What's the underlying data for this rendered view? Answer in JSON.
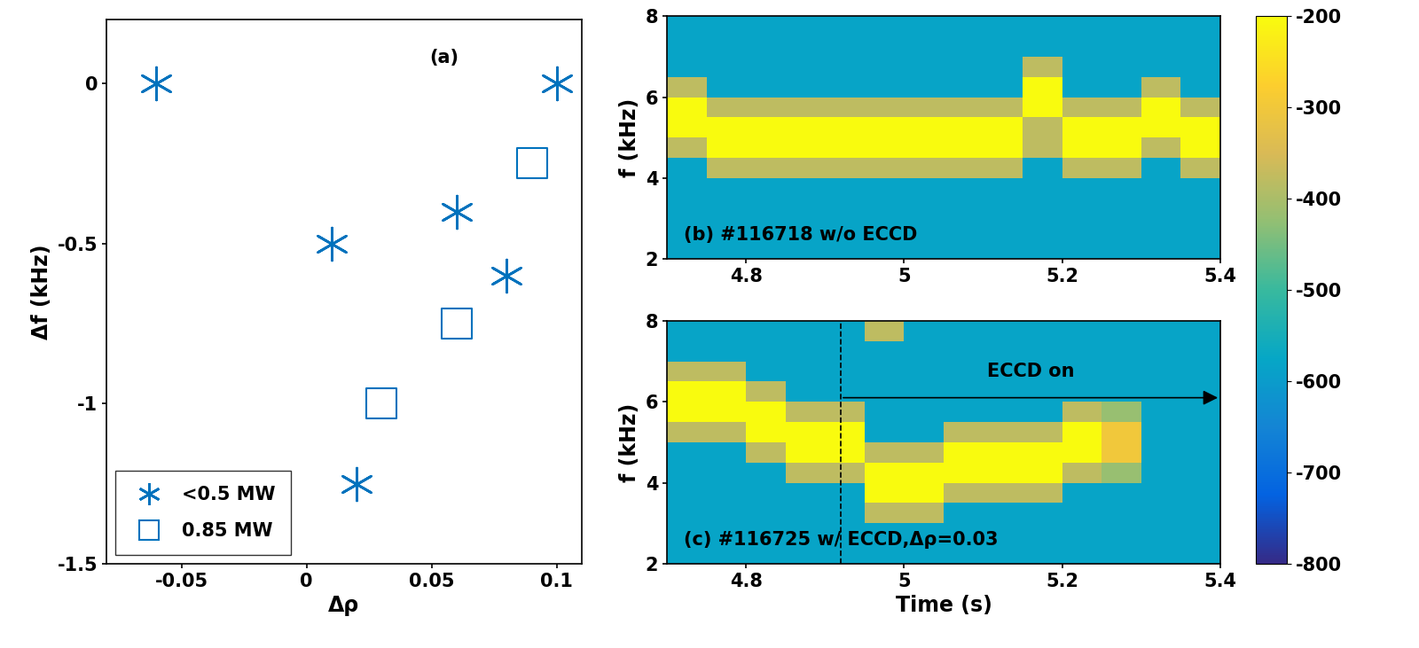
{
  "chart_data": [
    {
      "type": "scatter",
      "annotation": "(a)",
      "x_label": "Δρ",
      "y_label": "Δf (kHz)",
      "xlim": [
        -0.08,
        0.11
      ],
      "xticks": [
        -0.05,
        0,
        0.05,
        0.1
      ],
      "ylim": [
        -1.5,
        0.2
      ],
      "yticks": [
        -1.5,
        -1,
        -0.5,
        0
      ],
      "legend": "lower left",
      "series": [
        {
          "name": "<0.5 MW",
          "color": "#0072bd",
          "marker": "asterisk",
          "x": [
            -0.06,
            0.1,
            0.01,
            0.06,
            0.08,
            0.02
          ],
          "values": [
            0,
            0,
            -0.5,
            -0.4,
            -0.6,
            -1.25
          ]
        },
        {
          "name": "0.85 MW",
          "color": "#0072bd",
          "marker": "square",
          "x": [
            0.09,
            0.06,
            0.03
          ],
          "values": [
            -0.25,
            -0.75,
            -1.0
          ]
        }
      ]
    },
    {
      "type": "heatmap",
      "annotation": "(b) #116718 w/o ECCD",
      "y_label": "f (kHz)",
      "xlim": [
        4.7,
        5.4
      ],
      "xticks": [
        4.8,
        5,
        5.2,
        5.4
      ],
      "ylim": [
        2,
        8
      ],
      "yticks": [
        2,
        4,
        6,
        8
      ],
      "x_edges": [
        4.7,
        4.75,
        4.8,
        4.85,
        4.9,
        4.95,
        5.0,
        5.05,
        5.1,
        5.15,
        5.2,
        5.25,
        5.3,
        5.35,
        5.4
      ],
      "y_edges": [
        2,
        2.5,
        3,
        3.5,
        4,
        4.5,
        5,
        5.5,
        6,
        6.5,
        7,
        7.5,
        8
      ],
      "cells": [
        [
          -580,
          -580,
          -580,
          -580,
          -580,
          -580,
          -580,
          -580,
          -580,
          -580,
          -580,
          -580,
          -580,
          -580
        ],
        [
          -580,
          -580,
          -580,
          -580,
          -580,
          -580,
          -580,
          -580,
          -580,
          -580,
          -580,
          -580,
          -580,
          -580
        ],
        [
          -580,
          -580,
          -580,
          -580,
          -580,
          -580,
          -580,
          -580,
          -580,
          -580,
          -580,
          -580,
          -580,
          -580
        ],
        [
          -580,
          -580,
          -580,
          -580,
          -580,
          -580,
          -580,
          -580,
          -580,
          -580,
          -580,
          -580,
          -580,
          -580
        ],
        [
          -580,
          -380,
          -380,
          -380,
          -380,
          -380,
          -380,
          -380,
          -380,
          -580,
          -380,
          -380,
          -580,
          -380
        ],
        [
          -380,
          -200,
          -200,
          -200,
          -200,
          -200,
          -200,
          -200,
          -200,
          -380,
          -200,
          -200,
          -380,
          -200
        ],
        [
          -200,
          -200,
          -200,
          -200,
          -200,
          -200,
          -200,
          -200,
          -200,
          -380,
          -200,
          -200,
          -200,
          -200
        ],
        [
          -200,
          -380,
          -380,
          -380,
          -380,
          -380,
          -380,
          -380,
          -380,
          -200,
          -380,
          -380,
          -200,
          -380
        ],
        [
          -380,
          -580,
          -580,
          -580,
          -580,
          -580,
          -580,
          -580,
          -580,
          -200,
          -580,
          -580,
          -380,
          -580
        ],
        [
          -580,
          -580,
          -580,
          -580,
          -580,
          -580,
          -580,
          -580,
          -580,
          -380,
          -580,
          -580,
          -580,
          -580
        ],
        [
          -580,
          -580,
          -580,
          -580,
          -580,
          -580,
          -580,
          -580,
          -580,
          -580,
          -580,
          -580,
          -580,
          -580
        ],
        [
          -580,
          -580,
          -580,
          -580,
          -580,
          -580,
          -580,
          -580,
          -580,
          -580,
          -580,
          -580,
          -580,
          -580
        ]
      ],
      "colorbar": {
        "range": [
          -800,
          -200
        ],
        "ticks": [
          -800,
          -700,
          -600,
          -500,
          -400,
          -300,
          -200
        ]
      }
    },
    {
      "type": "heatmap",
      "annotation": "(c) #116725 w/ ECCD,Δρ=0.03",
      "x_label": "Time (s)",
      "y_label": "f (kHz)",
      "xlim": [
        4.7,
        5.4
      ],
      "xticks": [
        4.8,
        5,
        5.2,
        5.4
      ],
      "ylim": [
        2,
        8
      ],
      "yticks": [
        2,
        4,
        6,
        8
      ],
      "x_edges": [
        4.7,
        4.75,
        4.8,
        4.85,
        4.9,
        4.95,
        5.0,
        5.05,
        5.1,
        5.15,
        5.2,
        5.25,
        5.3,
        5.35,
        5.4
      ],
      "y_edges": [
        2,
        2.5,
        3,
        3.5,
        4,
        4.5,
        5,
        5.5,
        6,
        6.5,
        7,
        7.5,
        8
      ],
      "cells": [
        [
          -580,
          -580,
          -580,
          -580,
          -580,
          -580,
          -580,
          -580,
          -580,
          -580,
          -580,
          -580,
          -580,
          -580
        ],
        [
          -580,
          -580,
          -580,
          -580,
          -580,
          -580,
          -580,
          -580,
          -580,
          -580,
          -580,
          -580,
          -580,
          -580
        ],
        [
          -580,
          -580,
          -580,
          -580,
          -580,
          -380,
          -380,
          -580,
          -580,
          -580,
          -580,
          -580,
          -580,
          -580
        ],
        [
          -580,
          -580,
          -580,
          -580,
          -580,
          -200,
          -200,
          -380,
          -380,
          -380,
          -580,
          -580,
          -580,
          -580
        ],
        [
          -580,
          -580,
          -580,
          -380,
          -380,
          -200,
          -200,
          -200,
          -200,
          -200,
          -380,
          -420,
          -580,
          -580
        ],
        [
          -580,
          -580,
          -380,
          -200,
          -200,
          -380,
          -380,
          -200,
          -200,
          -200,
          -200,
          -300,
          -580,
          -580
        ],
        [
          -380,
          -380,
          -200,
          -200,
          -200,
          -580,
          -580,
          -380,
          -380,
          -380,
          -200,
          -300,
          -580,
          -580
        ],
        [
          -200,
          -200,
          -200,
          -380,
          -380,
          -580,
          -580,
          -580,
          -580,
          -580,
          -380,
          -420,
          -580,
          -580
        ],
        [
          -200,
          -200,
          -380,
          -580,
          -580,
          -580,
          -580,
          -580,
          -580,
          -580,
          -580,
          -580,
          -580,
          -580
        ],
        [
          -380,
          -380,
          -580,
          -580,
          -580,
          -580,
          -580,
          -580,
          -580,
          -580,
          -580,
          -580,
          -580,
          -580
        ],
        [
          -580,
          -580,
          -580,
          -580,
          -580,
          -580,
          -580,
          -580,
          -580,
          -580,
          -580,
          -580,
          -580,
          -580
        ],
        [
          -580,
          -580,
          -580,
          -580,
          -580,
          -380,
          -580,
          -580,
          -580,
          -580,
          -580,
          -580,
          -580,
          -580
        ]
      ],
      "eccd_arrow": {
        "label": "ECCD on",
        "x": [
          4.92,
          5.4
        ],
        "y": 6.1
      },
      "colorbar": {
        "range": [
          -800,
          -200
        ],
        "ticks": [
          -800,
          -700,
          -600,
          -500,
          -400,
          -300,
          -200
        ]
      }
    }
  ]
}
